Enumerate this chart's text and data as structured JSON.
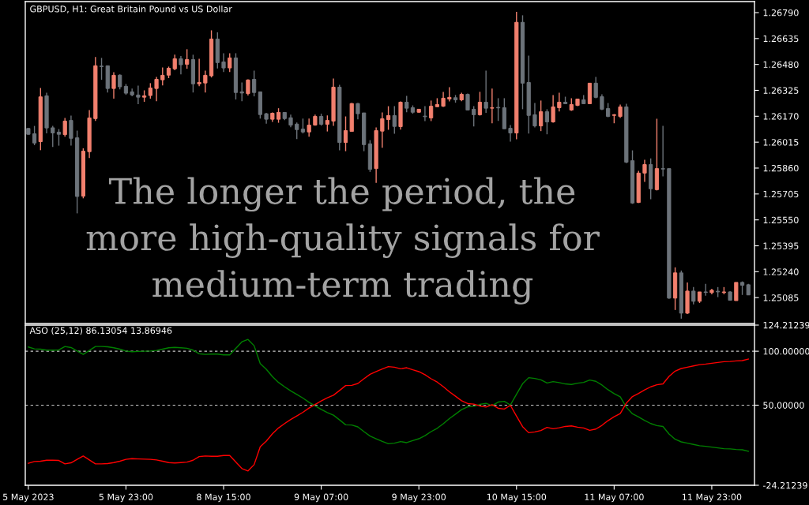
{
  "chart_data": [
    {
      "type": "candlestick",
      "title": "GBPUSD, H1: Great Britain Pound vs US Dollar",
      "categories": [
        null,
        null,
        null,
        null,
        null,
        null,
        null,
        null,
        null,
        null,
        null,
        null,
        null,
        null,
        null,
        null,
        null,
        null,
        null,
        null,
        null,
        null,
        null,
        null,
        null,
        null,
        null,
        null,
        null,
        null,
        null,
        null,
        null,
        null,
        null,
        null,
        null,
        null,
        null,
        null,
        null,
        null,
        null,
        null,
        null,
        null,
        null,
        null,
        null,
        null,
        null,
        null,
        null,
        null,
        null,
        null,
        null,
        null,
        null,
        null,
        null,
        null,
        null,
        null,
        null,
        null,
        null,
        null,
        null,
        null,
        null,
        null,
        null,
        null,
        null,
        null,
        null,
        null,
        null,
        null,
        null,
        null,
        null,
        null,
        null,
        null,
        null,
        null,
        null,
        null,
        null,
        null,
        null,
        null,
        null,
        null,
        null,
        null,
        null,
        null,
        null,
        null,
        null,
        null,
        null,
        null,
        null,
        null,
        null,
        null,
        null,
        null,
        null,
        null,
        null,
        null,
        null,
        null,
        null
      ],
      "ohlc": [
        [
          1.26097,
          1.261,
          1.26059,
          1.26062
        ],
        [
          1.26065,
          1.26112,
          1.25997,
          1.2601
        ],
        [
          1.26018,
          1.26339,
          1.25967,
          1.26286
        ],
        [
          1.26292,
          1.26311,
          1.26068,
          1.261
        ],
        [
          1.26101,
          1.26112,
          1.25986,
          1.2607
        ],
        [
          1.26075,
          1.26093,
          1.25994,
          1.26062
        ],
        [
          1.2606,
          1.2616,
          1.26048,
          1.26141
        ],
        [
          1.26145,
          1.26174,
          1.25994,
          1.26038
        ],
        [
          1.26041,
          1.26084,
          1.25589,
          1.2569
        ],
        [
          1.25692,
          1.25978,
          1.25679,
          1.25961
        ],
        [
          1.25958,
          1.26207,
          1.2592,
          1.2616
        ],
        [
          1.26156,
          1.26524,
          1.26142,
          1.26472
        ],
        [
          1.2647,
          1.26519,
          1.26388,
          1.26467
        ],
        [
          1.26472,
          1.26472,
          1.26312,
          1.26336
        ],
        [
          1.26336,
          1.26434,
          1.26275,
          1.26415
        ],
        [
          1.26416,
          1.2642,
          1.26331,
          1.26346
        ],
        [
          1.26349,
          1.26363,
          1.26298,
          1.26308
        ],
        [
          1.26316,
          1.26335,
          1.2629,
          1.26298
        ],
        [
          1.26297,
          1.26353,
          1.26242,
          1.26284
        ],
        [
          1.26284,
          1.26325,
          1.26256,
          1.26292
        ],
        [
          1.26294,
          1.26368,
          1.26275,
          1.26339
        ],
        [
          1.26336,
          1.26405,
          1.2626,
          1.26391
        ],
        [
          1.26388,
          1.26462,
          1.26355,
          1.26415
        ],
        [
          1.26416,
          1.26467,
          1.26398,
          1.26457
        ],
        [
          1.26454,
          1.26538,
          1.26445,
          1.26514
        ],
        [
          1.26514,
          1.2653,
          1.26421,
          1.26478
        ],
        [
          1.26481,
          1.26571,
          1.26454,
          1.26509
        ],
        [
          1.26509,
          1.26538,
          1.26312,
          1.26364
        ],
        [
          1.26364,
          1.26514,
          1.2635,
          1.26372
        ],
        [
          1.26369,
          1.26443,
          1.26312,
          1.26415
        ],
        [
          1.26412,
          1.26684,
          1.26402,
          1.26632
        ],
        [
          1.26632,
          1.26672,
          1.26456,
          1.26491
        ],
        [
          1.26495,
          1.26547,
          1.26435,
          1.26459
        ],
        [
          1.26459,
          1.26547,
          1.26435,
          1.26519
        ],
        [
          1.26519,
          1.26547,
          1.2627,
          1.26312
        ],
        [
          1.26316,
          1.26372,
          1.2626,
          1.26309
        ],
        [
          1.26306,
          1.26391,
          1.26294,
          1.26387
        ],
        [
          1.26391,
          1.26443,
          1.26289,
          1.26312
        ],
        [
          1.26316,
          1.26316,
          1.26156,
          1.2618
        ],
        [
          1.26185,
          1.2619,
          1.26125,
          1.26152
        ],
        [
          1.26152,
          1.26193,
          1.26136,
          1.26188
        ],
        [
          1.26152,
          1.26218,
          1.26131,
          1.26193
        ],
        [
          1.26193,
          1.26193,
          1.26147,
          1.26156
        ],
        [
          1.26161,
          1.2618,
          1.26104,
          1.26117
        ],
        [
          1.26123,
          1.26133,
          1.26034,
          1.2609
        ],
        [
          1.26093,
          1.26156,
          1.26067,
          1.26076
        ],
        [
          1.26076,
          1.26156,
          1.26048,
          1.26117
        ],
        [
          1.26117,
          1.2618,
          1.26114,
          1.26169
        ],
        [
          1.26169,
          1.26185,
          1.26114,
          1.26122
        ],
        [
          1.26122,
          1.26175,
          1.26079,
          1.26145
        ],
        [
          1.26141,
          1.26396,
          1.26112,
          1.26344
        ],
        [
          1.26344,
          1.26358,
          1.25966,
          1.26013
        ],
        [
          1.26013,
          1.26169,
          1.25961,
          1.26084
        ],
        [
          1.26079,
          1.26249,
          1.26079,
          1.26246
        ],
        [
          1.26246,
          1.26249,
          1.26152,
          1.26185
        ],
        [
          1.2619,
          1.2619,
          1.25961,
          1.26
        ],
        [
          1.26005,
          1.26027,
          1.25837,
          1.25852
        ],
        [
          1.25857,
          1.26103,
          1.25772,
          1.26084
        ],
        [
          1.26081,
          1.26193,
          1.25982,
          1.26155
        ],
        [
          1.2615,
          1.2623,
          1.26089,
          1.26174
        ],
        [
          1.26174,
          1.2623,
          1.26065,
          1.26109
        ],
        [
          1.26108,
          1.26259,
          1.2609,
          1.26254
        ],
        [
          1.26254,
          1.26292,
          1.26194,
          1.26218
        ],
        [
          1.26221,
          1.26235,
          1.26185,
          1.26194
        ],
        [
          1.26194,
          1.26212,
          1.2619,
          1.26212
        ],
        [
          1.26171,
          1.2623,
          1.26141,
          1.26167
        ],
        [
          1.2616,
          1.26264,
          1.26141,
          1.2623
        ],
        [
          1.26227,
          1.26278,
          1.26226,
          1.2624
        ],
        [
          1.2623,
          1.26316,
          1.26226,
          1.26278
        ],
        [
          1.26273,
          1.26344,
          1.26259,
          1.26283
        ],
        [
          1.26281,
          1.26297,
          1.26251,
          1.26268
        ],
        [
          1.26268,
          1.26311,
          1.2626,
          1.26301
        ],
        [
          1.26301,
          1.26306,
          1.26204,
          1.26207
        ],
        [
          1.26212,
          1.2623,
          1.26109,
          1.26179
        ],
        [
          1.26179,
          1.26316,
          1.26174,
          1.26254
        ],
        [
          1.26254,
          1.26443,
          1.2619,
          1.26218
        ],
        [
          1.26218,
          1.26335,
          1.26128,
          1.26221
        ],
        [
          1.26223,
          1.26278,
          1.26142,
          1.2622
        ],
        [
          1.26221,
          1.26278,
          1.26095,
          1.26095
        ],
        [
          1.26098,
          1.26117,
          1.26018,
          1.2607
        ],
        [
          1.2607,
          1.26795,
          1.26032,
          1.26732
        ],
        [
          1.26732,
          1.26774,
          1.26212,
          1.26368
        ],
        [
          1.26372,
          1.26533,
          1.26067,
          1.26175
        ],
        [
          1.26179,
          1.26249,
          1.26103,
          1.26112
        ],
        [
          1.26112,
          1.26264,
          1.26081,
          1.26197
        ],
        [
          1.26197,
          1.26212,
          1.26062,
          1.26136
        ],
        [
          1.26136,
          1.26297,
          1.26131,
          1.26226
        ],
        [
          1.26221,
          1.26311,
          1.26199,
          1.26254
        ],
        [
          1.26254,
          1.26287,
          1.26245,
          1.26245
        ],
        [
          1.26207,
          1.26278,
          1.26202,
          1.2624
        ],
        [
          1.26235,
          1.26273,
          1.2623,
          1.26273
        ],
        [
          1.26268,
          1.26297,
          1.26245,
          1.26245
        ],
        [
          1.26245,
          1.26368,
          1.26245,
          1.26368
        ],
        [
          1.26368,
          1.26405,
          1.26278,
          1.26283
        ],
        [
          1.26287,
          1.26301,
          1.26207,
          1.26212
        ],
        [
          1.26216,
          1.26249,
          1.26164,
          1.26169
        ],
        [
          1.26175,
          1.26183,
          1.26128,
          1.26179
        ],
        [
          1.26169,
          1.2624,
          1.2616,
          1.26226
        ],
        [
          1.26226,
          1.26245,
          1.2589,
          1.25895
        ],
        [
          1.25904,
          1.25966,
          1.25646,
          1.25651
        ],
        [
          1.25654,
          1.25844,
          1.25651,
          1.2583
        ],
        [
          1.2583,
          1.25909,
          1.25777,
          1.25881
        ],
        [
          1.25881,
          1.25918,
          1.25674,
          1.25736
        ],
        [
          1.25731,
          1.26155,
          1.25726,
          1.25857
        ],
        [
          1.25857,
          1.26112,
          1.2581,
          1.25854
        ],
        [
          1.25857,
          1.25857,
          1.25077,
          1.25082
        ],
        [
          1.25082,
          1.25266,
          1.25011,
          1.25233
        ],
        [
          1.25233,
          1.25247,
          1.24959,
          1.24992
        ],
        [
          1.24992,
          1.25176,
          1.24987,
          1.25124
        ],
        [
          1.25124,
          1.25148,
          1.25044,
          1.25063
        ],
        [
          1.25063,
          1.25119,
          1.25053,
          1.25119
        ],
        [
          1.25119,
          1.25167,
          1.25096,
          1.25116
        ],
        [
          1.25115,
          1.25138,
          1.25105,
          1.25129
        ],
        [
          1.25123,
          1.25148,
          1.25088,
          1.25119
        ],
        [
          1.25115,
          1.25148,
          1.25105,
          1.25119
        ],
        [
          1.25119,
          1.25124,
          1.25069,
          1.25069
        ],
        [
          1.25067,
          1.25176,
          1.25067,
          1.25176
        ],
        [
          1.25176,
          1.25182,
          1.25101,
          1.25159
        ],
        [
          1.25162,
          1.25167,
          1.25101,
          1.25101
        ]
      ],
      "colors": [
        "#6c737a",
        "#6c737a",
        "#f2806e",
        "#6c737a",
        "#6c737a",
        "#6c737a",
        "#f2806e",
        "#6c737a",
        "#6c737a",
        "#f2806e",
        "#f2806e",
        "#f2806e",
        "#6c737a",
        "#6c737a",
        "#f2806e",
        "#6c737a",
        "#6c737a",
        "#6c737a",
        "#6c737a",
        "#f2806e",
        "#f2806e",
        "#f2806e",
        "#f2806e",
        "#f2806e",
        "#f2806e",
        "#6c737a",
        "#f2806e",
        "#6c737a",
        "#f2806e",
        "#f2806e",
        "#f2806e",
        "#6c737a",
        "#6c737a",
        "#f2806e",
        "#6c737a",
        "#6c737a",
        "#f2806e",
        "#6c737a",
        "#6c737a",
        "#6c737a",
        "#f2806e",
        "#f2806e",
        "#6c737a",
        "#6c737a",
        "#6c737a",
        "#6c737a",
        "#f2806e",
        "#f2806e",
        "#6c737a",
        "#f2806e",
        "#f2806e",
        "#6c737a",
        "#f2806e",
        "#f2806e",
        "#6c737a",
        "#6c737a",
        "#6c737a",
        "#f2806e",
        "#f2806e",
        "#f2806e",
        "#6c737a",
        "#f2806e",
        "#6c737a",
        "#6c737a",
        "#f2806e",
        "#6c737a",
        "#f2806e",
        "#f2806e",
        "#f2806e",
        "#f2806e",
        "#6c737a",
        "#f2806e",
        "#6c737a",
        "#6c737a",
        "#f2806e",
        "#6c737a",
        "#f2806e",
        "#6c737a",
        "#6c737a",
        "#6c737a",
        "#f2806e",
        "#6c737a",
        "#6c737a",
        "#6c737a",
        "#f2806e",
        "#6c737a",
        "#f2806e",
        "#f2806e",
        "#6c737a",
        "#f2806e",
        "#f2806e",
        "#6c737a",
        "#f2806e",
        "#6c737a",
        "#6c737a",
        "#6c737a",
        "#f2806e",
        "#f2806e",
        "#6c737a",
        "#6c737a",
        "#f2806e",
        "#f2806e",
        "#6c737a",
        "#f2806e",
        "#6c737a",
        "#6c737a",
        "#f2806e",
        "#6c737a",
        "#f2806e",
        "#6c737a",
        "#f2806e",
        "#6c737a",
        "#f2806e",
        "#6c737a",
        "#f2806e",
        "#6c737a",
        "#f2806e",
        "#6c737a",
        "#6c737a"
      ],
      "ylim": [
        1.2493,
        1.26856
      ],
      "yticks": [
        1.25085,
        {
          "value": 1.2524,
          "label": "1.25240"
        },
        1.25395,
        {
          "value": 1.2555,
          "label": "1.25550"
        },
        1.25705,
        {
          "value": 1.2586,
          "label": "1.25860"
        },
        1.26015,
        {
          "value": 1.2617,
          "label": "1.26170"
        },
        1.26325,
        {
          "value": 1.2648,
          "label": "1.26480"
        },
        1.26635,
        {
          "value": 1.2679,
          "label": "1.26790"
        }
      ],
      "annotations": [
        "The longer the period, the\nmore high-quality signals for\nmedium-term trading"
      ]
    },
    {
      "type": "line",
      "title": "ASO (25,12) 86.13054 13.86946",
      "categories": [
        "5 May 2023",
        null,
        null,
        null,
        null,
        null,
        null,
        null,
        null,
        null,
        null,
        null,
        null,
        null,
        null,
        null,
        "5 May 23:00",
        null,
        null,
        null,
        null,
        null,
        null,
        null,
        null,
        null,
        null,
        null,
        null,
        null,
        null,
        null,
        "8 May 15:00",
        null,
        null,
        null,
        null,
        null,
        null,
        null,
        null,
        null,
        null,
        null,
        null,
        null,
        null,
        null,
        "9 May 07:00",
        null,
        null,
        null,
        null,
        null,
        null,
        null,
        null,
        null,
        null,
        null,
        null,
        null,
        null,
        null,
        "9 May 23:00",
        null,
        null,
        null,
        null,
        null,
        null,
        null,
        null,
        null,
        null,
        null,
        null,
        null,
        null,
        null,
        "10 May 15:00",
        null,
        null,
        null,
        null,
        null,
        null,
        null,
        null,
        null,
        null,
        null,
        null,
        null,
        null,
        null,
        "11 May 07:00",
        null,
        null,
        null,
        null,
        null,
        null,
        null,
        null,
        null,
        null,
        null,
        null,
        null,
        null,
        null,
        "11 May 23:00",
        null,
        null,
        null,
        null,
        null,
        null
      ],
      "series": [
        {
          "color": "#008000",
          "values": [
            103.9,
            102.2,
            101.9,
            101.0,
            101.0,
            101.2,
            104.4,
            103.4,
            100.2,
            97.1,
            100.7,
            104.4,
            104.4,
            104.1,
            103.2,
            101.9,
            100.2,
            99.5,
            99.8,
            100.0,
            100.2,
            100.7,
            101.9,
            103.2,
            103.6,
            103.2,
            102.7,
            101.0,
            97.6,
            97.1,
            97.3,
            97.3,
            96.6,
            96.6,
            102.7,
            108.7,
            110.9,
            105.1,
            88.6,
            83.3,
            76.5,
            71.1,
            67.0,
            63.3,
            60.0,
            56.6,
            52.7,
            49.3,
            46.1,
            43.2,
            40.8,
            36.4,
            31.8,
            31.6,
            29.9,
            25.5,
            21.4,
            18.9,
            16.5,
            14.3,
            14.8,
            16.3,
            15.3,
            17.2,
            18.9,
            21.8,
            25.5,
            28.6,
            32.8,
            37.6,
            41.7,
            45.9,
            48.5,
            49.0,
            50.7,
            51.7,
            49.5,
            52.9,
            53.6,
            50.2,
            60.2,
            69.9,
            75.5,
            74.8,
            73.5,
            70.6,
            71.8,
            70.9,
            69.7,
            69.2,
            70.4,
            71.1,
            73.3,
            72.1,
            68.7,
            64.3,
            60.7,
            57.8,
            48.1,
            42.0,
            39.1,
            35.9,
            33.0,
            31.1,
            30.3,
            23.3,
            18.4,
            16.0,
            14.8,
            13.6,
            12.4,
            11.9,
            11.2,
            10.4,
            9.7,
            9.5,
            9.0,
            8.7,
            7.3
          ]
        },
        {
          "color": "#ff0000",
          "values": [
            -3.9,
            -2.2,
            -1.9,
            -1.0,
            -1.0,
            -1.2,
            -4.4,
            -3.4,
            -0.2,
            2.9,
            -0.7,
            -4.4,
            -4.4,
            -4.1,
            -3.2,
            -1.9,
            -0.2,
            0.5,
            0.2,
            0.0,
            -0.2,
            -0.7,
            -1.9,
            -3.2,
            -3.6,
            -3.2,
            -2.7,
            -1.0,
            2.4,
            2.9,
            2.7,
            2.7,
            3.4,
            3.4,
            -2.7,
            -8.7,
            -10.9,
            -5.1,
            11.4,
            16.7,
            23.5,
            28.9,
            33.0,
            36.7,
            40.0,
            43.4,
            47.3,
            50.7,
            53.9,
            56.8,
            59.2,
            63.6,
            68.2,
            68.4,
            70.1,
            74.5,
            78.6,
            81.1,
            83.5,
            85.7,
            85.2,
            83.7,
            84.7,
            82.8,
            81.1,
            78.2,
            74.5,
            71.4,
            67.2,
            62.4,
            58.3,
            54.1,
            51.5,
            51.0,
            49.3,
            48.3,
            50.5,
            47.1,
            46.4,
            49.8,
            39.8,
            30.1,
            24.5,
            25.2,
            26.5,
            29.4,
            28.2,
            29.1,
            30.3,
            30.8,
            29.6,
            28.9,
            26.7,
            27.9,
            31.3,
            35.7,
            39.3,
            42.2,
            51.9,
            58.0,
            60.9,
            64.1,
            67.0,
            68.9,
            69.7,
            76.7,
            81.6,
            84.0,
            85.2,
            86.4,
            87.6,
            88.1,
            88.8,
            89.6,
            90.3,
            90.5,
            91.0,
            91.3,
            92.7
          ]
        }
      ],
      "ylim": [
        -24.21239,
        124.21239
      ],
      "yticks": [
        -24.21239,
        {
          "value": 50,
          "label": "50.00000"
        },
        {
          "value": 100,
          "label": "100.00000"
        },
        124.21239
      ],
      "ref_lines": [
        {
          "axis": "y",
          "value": 100,
          "color": "#c8c8c8",
          "line_style": "dashed"
        },
        {
          "axis": "y",
          "value": 50,
          "color": "#c8c8c8",
          "line_style": "dashed"
        }
      ]
    }
  ]
}
